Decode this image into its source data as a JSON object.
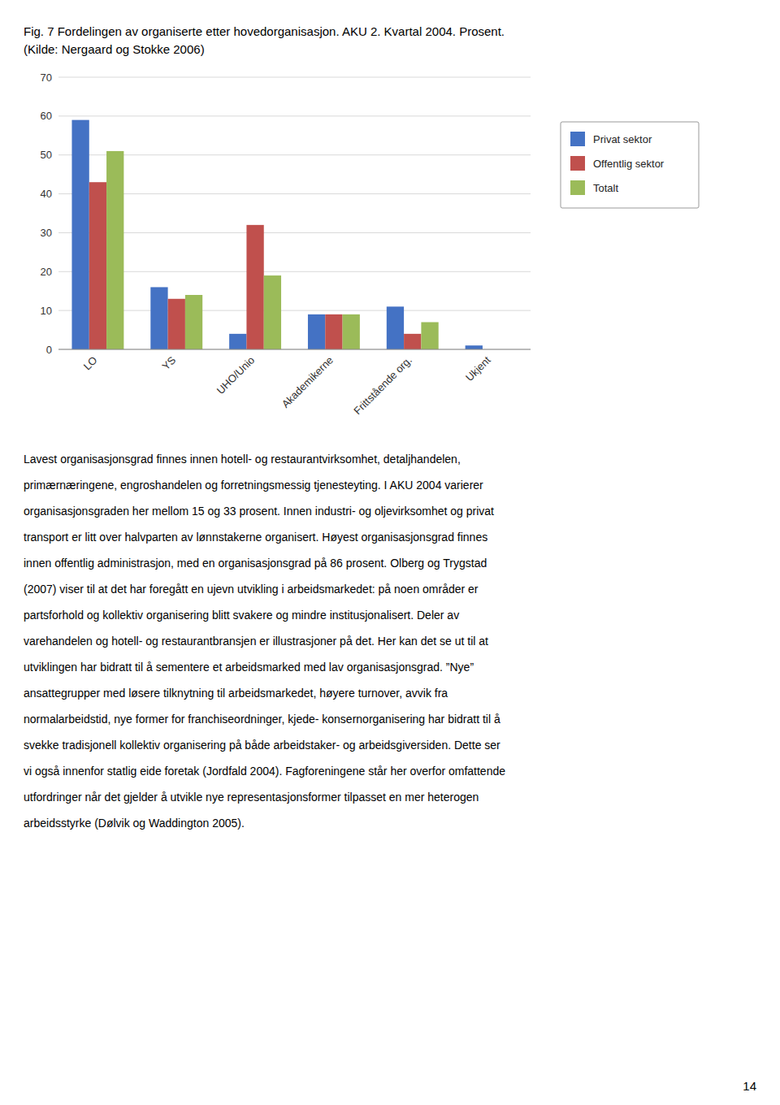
{
  "chart_data": {
    "type": "bar",
    "title": "Fig. 7 Fordelingen av organiserte etter hovedorganisasjon. AKU 2. Kvartal 2004. Prosent.",
    "subtitle": "(Kilde: Nergaard og Stokke 2006)",
    "categories": [
      "LO",
      "YS",
      "UHO/Unio",
      "Akademikerne",
      "Frittstående org.",
      "Ukjent"
    ],
    "series": [
      {
        "name": "Privat sektor",
        "color": "#4472C4",
        "values": [
          59,
          16,
          4,
          9,
          11,
          1
        ]
      },
      {
        "name": "Offentlig sektor",
        "color": "#C0504D",
        "values": [
          43,
          13,
          32,
          9,
          4,
          0
        ]
      },
      {
        "name": "Totalt",
        "color": "#9BBB59",
        "values": [
          51,
          14,
          19,
          9,
          7,
          0
        ]
      }
    ],
    "ylim": [
      0,
      70
    ],
    "yticks": [
      0,
      10,
      20,
      30,
      40,
      50,
      60,
      70
    ],
    "grid": true,
    "legend": "right"
  },
  "body_text": [
    "Lavest organisasjonsgrad finnes innen hotell- og restaurantvirksomhet, detaljhandelen,",
    "primærnæringene, engroshandelen og forretningsmessig tjenesteyting. I AKU 2004 varierer",
    "organisasjonsgraden her mellom 15 og 33 prosent. Innen industri- og oljevirksomhet og privat",
    "transport er litt over halvparten av lønnstakerne organisert. Høyest organisasjonsgrad finnes",
    "innen offentlig administrasjon, med en organisasjonsgrad på 86 prosent. Olberg og Trygstad",
    "(2007) viser til at det har foregått en ujevn utvikling i arbeidsmarkedet: på noen områder er",
    "partsforhold og kollektiv organisering blitt svakere og mindre institusjonalisert. Deler av",
    "varehandelen og hotell- og restaurantbransjen er illustrasjoner på det. Her kan det se ut til at",
    "utviklingen har bidratt til å sementere et arbeidsmarked med lav organisasjonsgrad. ”Nye”",
    "ansattegrupper med løsere tilknytning til arbeidsmarkedet, høyere turnover, avvik fra",
    "normalarbeidstid, nye former for franchiseordninger, kjede- konsernorganisering har bidratt til å",
    "svekke tradisjonell kollektiv organisering på både arbeidstaker- og arbeidsgiversiden. Dette ser",
    "vi også innenfor statlig eide foretak (Jordfald 2004). Fagforeningene står her overfor omfattende",
    "utfordringer når det gjelder å utvikle nye representasjonsformer tilpasset en mer heterogen",
    "arbeidsstyrke (Dølvik og Waddington 2005)."
  ],
  "page_number": "14"
}
